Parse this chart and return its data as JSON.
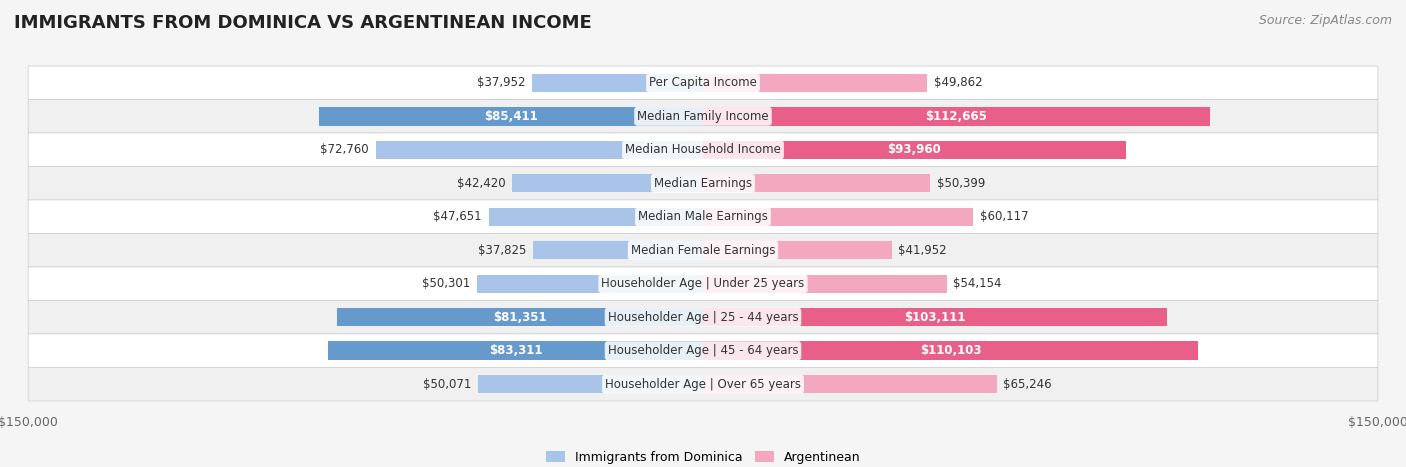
{
  "title": "IMMIGRANTS FROM DOMINICA VS ARGENTINEAN INCOME",
  "source": "Source: ZipAtlas.com",
  "categories": [
    "Per Capita Income",
    "Median Family Income",
    "Median Household Income",
    "Median Earnings",
    "Median Male Earnings",
    "Median Female Earnings",
    "Householder Age | Under 25 years",
    "Householder Age | 25 - 44 years",
    "Householder Age | 45 - 64 years",
    "Householder Age | Over 65 years"
  ],
  "dominica_values": [
    37952,
    85411,
    72760,
    42420,
    47651,
    37825,
    50301,
    81351,
    83311,
    50071
  ],
  "argentinean_values": [
    49862,
    112665,
    93960,
    50399,
    60117,
    41952,
    54154,
    103111,
    110103,
    65246
  ],
  "max_value": 150000,
  "dominica_color_light": "#a8c4e8",
  "dominica_color_dark": "#6699cc",
  "argentinean_color_light": "#f4a8c0",
  "argentinean_color_dark": "#e8608a",
  "label_inside_threshold": 75000,
  "background_color": "#f5f5f5",
  "row_bg_color": "#ffffff",
  "row_alt_bg_color": "#f0f0f0",
  "title_fontsize": 13,
  "source_fontsize": 9,
  "bar_label_fontsize": 8.5,
  "category_fontsize": 8.5,
  "axis_label_fontsize": 9,
  "legend_fontsize": 9
}
